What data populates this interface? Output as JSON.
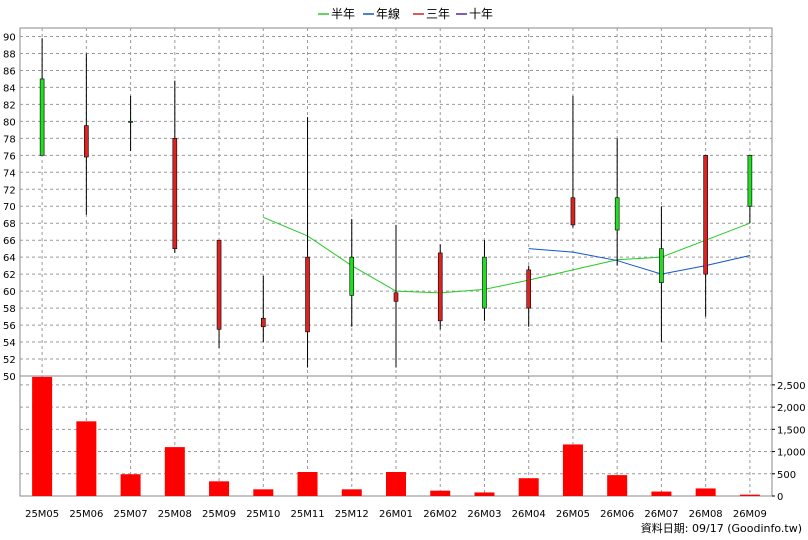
{
  "chart_data": {
    "type": "candlestick",
    "legend": [
      {
        "label": "半年",
        "color": "#22cc22"
      },
      {
        "label": "年線",
        "color": "#1155cc"
      },
      {
        "label": "三年",
        "color": "#cc2222"
      },
      {
        "label": "十年",
        "color": "#5522aa"
      }
    ],
    "categories": [
      "25M05",
      "25M06",
      "25M07",
      "25M08",
      "25M09",
      "25M10",
      "25M11",
      "25M12",
      "26M01",
      "26M02",
      "26M03",
      "26M04",
      "26M05",
      "26M06",
      "26M07",
      "26M08",
      "26M09"
    ],
    "price_axis": {
      "ylim": [
        50,
        91
      ],
      "ticks": [
        90,
        88,
        86,
        84,
        82,
        80,
        78,
        76,
        74,
        72,
        70,
        68,
        66,
        64,
        62,
        60,
        58,
        56,
        54,
        52,
        50
      ]
    },
    "candles": [
      {
        "open": 76.0,
        "close": 85.0,
        "high": 89.8,
        "low": 76.0
      },
      {
        "open": 79.5,
        "close": 75.8,
        "high": 88.0,
        "low": 69.0
      },
      {
        "open": 80.0,
        "close": 80.0,
        "high": 83.0,
        "low": 76.5
      },
      {
        "open": 78.0,
        "close": 65.0,
        "high": 84.8,
        "low": 64.5
      },
      {
        "open": 66.0,
        "close": 55.5,
        "high": 66.0,
        "low": 53.3
      },
      {
        "open": 56.8,
        "close": 55.8,
        "high": 61.8,
        "low": 54.0
      },
      {
        "open": 64.0,
        "close": 55.2,
        "high": 80.5,
        "low": 51.0
      },
      {
        "open": 59.5,
        "close": 64.0,
        "high": 68.5,
        "low": 55.8
      },
      {
        "open": 59.8,
        "close": 58.8,
        "high": 67.8,
        "low": 51.0
      },
      {
        "open": 64.5,
        "close": 56.5,
        "high": 65.5,
        "low": 55.5
      },
      {
        "open": 58.0,
        "close": 64.0,
        "high": 66.0,
        "low": 56.5
      },
      {
        "open": 62.5,
        "close": 58.0,
        "high": 63.0,
        "low": 55.8
      },
      {
        "open": 71.0,
        "close": 67.8,
        "high": 83.0,
        "low": 67.5
      },
      {
        "open": 67.2,
        "close": 71.0,
        "high": 78.0,
        "low": 63.0
      },
      {
        "open": 61.0,
        "close": 65.0,
        "high": 70.0,
        "low": 54.0
      },
      {
        "open": 76.0,
        "close": 62.0,
        "high": 76.0,
        "low": 57.0
      },
      {
        "open": 70.0,
        "close": 76.0,
        "high": 76.0,
        "low": 68.0
      }
    ],
    "ma_half_year": [
      null,
      null,
      null,
      null,
      null,
      68.7,
      66.5,
      63.0,
      60.0,
      59.8,
      60.2,
      61.3,
      62.5,
      63.7,
      64.0,
      66.0,
      68.0
    ],
    "ma_year": [
      null,
      null,
      null,
      null,
      null,
      null,
      null,
      null,
      null,
      null,
      null,
      65.0,
      64.6,
      63.6,
      62.0,
      63.0,
      64.2
    ],
    "volume_axis": {
      "ylim": [
        0,
        2700
      ],
      "ticks": [
        "2,500",
        "2,000",
        "1,500",
        "1,000",
        "500",
        "0"
      ]
    },
    "volume": [
      2680,
      1680,
      490,
      1100,
      330,
      150,
      540,
      150,
      540,
      120,
      80,
      400,
      1160,
      470,
      100,
      170,
      30
    ],
    "footer": "資料日期: 09/17  (Goodinfo.tw)"
  }
}
